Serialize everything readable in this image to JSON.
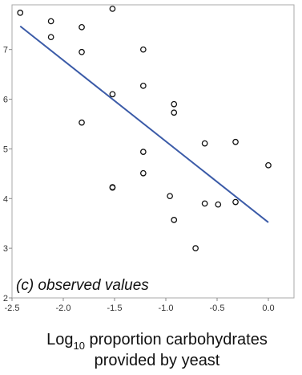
{
  "chart_data": {
    "type": "scatter",
    "title": "",
    "annotation": "(c) observed values",
    "xlabel": {
      "prefix": "Log",
      "subscript": "10",
      "line1_rest": " proportion carbohydrates",
      "line2": "provided by yeast"
    },
    "ylabel": "",
    "xlim": [
      -2.5,
      0.25
    ],
    "ylim": [
      2,
      7.9
    ],
    "x_ticks": [
      -2.5,
      -2.0,
      -1.5,
      -1.0,
      -0.5,
      0.0
    ],
    "x_tick_labels": [
      "-2.5",
      "-2.0",
      "-1.5",
      "-1.0",
      "-0.5",
      "0.0"
    ],
    "y_ticks": [
      2,
      3,
      4,
      5,
      6,
      7
    ],
    "y_tick_labels": [
      "2",
      "3",
      "4",
      "5",
      "6",
      "7"
    ],
    "grid": false,
    "legend": "none",
    "points": [
      {
        "x": -2.42,
        "y": 7.74
      },
      {
        "x": -2.12,
        "y": 7.57
      },
      {
        "x": -2.12,
        "y": 7.25
      },
      {
        "x": -1.82,
        "y": 7.45
      },
      {
        "x": -1.82,
        "y": 6.95
      },
      {
        "x": -1.82,
        "y": 5.53
      },
      {
        "x": -1.52,
        "y": 7.82
      },
      {
        "x": -1.52,
        "y": 6.1
      },
      {
        "x": -1.52,
        "y": 4.22
      },
      {
        "x": -1.52,
        "y": 4.23
      },
      {
        "x": -1.22,
        "y": 7.0
      },
      {
        "x": -1.22,
        "y": 6.27
      },
      {
        "x": -1.22,
        "y": 4.94
      },
      {
        "x": -1.22,
        "y": 4.51
      },
      {
        "x": -0.92,
        "y": 5.9
      },
      {
        "x": -0.92,
        "y": 5.73
      },
      {
        "x": -0.96,
        "y": 4.05
      },
      {
        "x": -0.92,
        "y": 3.57
      },
      {
        "x": -0.71,
        "y": 3.0
      },
      {
        "x": -0.62,
        "y": 5.11
      },
      {
        "x": -0.62,
        "y": 3.9
      },
      {
        "x": -0.49,
        "y": 3.88
      },
      {
        "x": -0.32,
        "y": 5.14
      },
      {
        "x": -0.32,
        "y": 3.93
      },
      {
        "x": 0.0,
        "y": 4.67
      }
    ],
    "fit_line": {
      "x": [
        -2.42,
        0.0
      ],
      "y": [
        7.47,
        3.52
      ]
    },
    "colors": {
      "points": "#111111",
      "fit_line": "#3b5ba8",
      "frame": "#aaaaaa"
    }
  }
}
